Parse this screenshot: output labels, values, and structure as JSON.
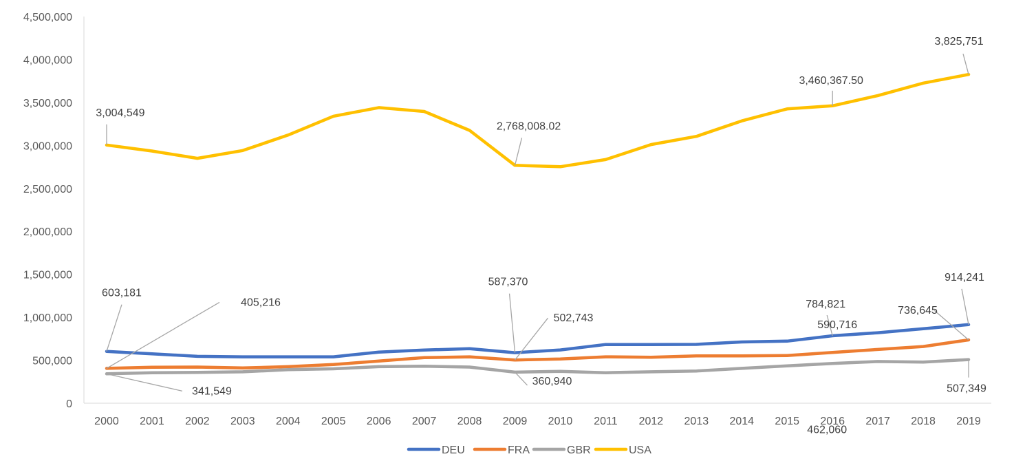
{
  "chart_data": {
    "type": "line",
    "title": "",
    "xlabel": "",
    "ylabel": "",
    "categories": [
      "2000",
      "2001",
      "2002",
      "2003",
      "2004",
      "2005",
      "2006",
      "2007",
      "2008",
      "2009",
      "2010",
      "2011",
      "2012",
      "2013",
      "2014",
      "2015",
      "2016",
      "2017",
      "2018",
      "2019"
    ],
    "ylim": [
      0,
      4500000
    ],
    "y_ticks": [
      0,
      500000,
      1000000,
      1500000,
      2000000,
      2500000,
      3000000,
      3500000,
      4000000,
      4500000
    ],
    "y_tick_labels": [
      "0",
      "500,000",
      "1,000,000",
      "1,500,000",
      "2,000,000",
      "2,500,000",
      "3,000,000",
      "3,500,000",
      "4,000,000",
      "4,500,000"
    ],
    "grid": false,
    "legend_position": "bottom",
    "series": [
      {
        "name": "DEU",
        "color": "#4472C4",
        "values": [
          603181,
          575000,
          545000,
          540000,
          540000,
          540000,
          595000,
          618000,
          635000,
          587370,
          620000,
          683000,
          683000,
          685000,
          713000,
          722000,
          784821,
          820000,
          866000,
          914241
        ]
      },
      {
        "name": "FRA",
        "color": "#ED7D31",
        "values": [
          405216,
          418000,
          420000,
          410000,
          425000,
          450000,
          490000,
          530000,
          540000,
          502743,
          515000,
          540000,
          535000,
          550000,
          550000,
          555000,
          590716,
          625000,
          660000,
          736645
        ]
      },
      {
        "name": "GBR",
        "color": "#A5A5A5",
        "values": [
          341549,
          355000,
          358000,
          365000,
          390000,
          400000,
          425000,
          430000,
          420000,
          360940,
          370000,
          355000,
          365000,
          375000,
          405000,
          435000,
          462060,
          485000,
          478000,
          507349
        ]
      },
      {
        "name": "USA",
        "color": "#FFC000",
        "values": [
          3004549,
          2935000,
          2850000,
          2940000,
          3120000,
          3340000,
          3440000,
          3395000,
          3175000,
          2768008.02,
          2752000,
          2835000,
          3010000,
          3105000,
          3285000,
          3425000,
          3460367.5,
          3580000,
          3725000,
          3825751
        ]
      }
    ],
    "data_labels": [
      {
        "series": "USA",
        "category": "2000",
        "text": "3,004,549"
      },
      {
        "series": "USA",
        "category": "2009",
        "text": "2,768,008.02"
      },
      {
        "series": "USA",
        "category": "2016",
        "text": "3,460,367.50"
      },
      {
        "series": "USA",
        "category": "2019",
        "text": "3,825,751"
      },
      {
        "series": "DEU",
        "category": "2000",
        "text": "603,181"
      },
      {
        "series": "DEU",
        "category": "2009",
        "text": "587,370"
      },
      {
        "series": "DEU",
        "category": "2016",
        "text": "784,821"
      },
      {
        "series": "DEU",
        "category": "2019",
        "text": "914,241"
      },
      {
        "series": "FRA",
        "category": "2000",
        "text": "405,216"
      },
      {
        "series": "FRA",
        "category": "2009",
        "text": "502,743"
      },
      {
        "series": "FRA",
        "category": "2016",
        "text": "590,716"
      },
      {
        "series": "FRA",
        "category": "2019",
        "text": "736,645"
      },
      {
        "series": "GBR",
        "category": "2000",
        "text": "341,549"
      },
      {
        "series": "GBR",
        "category": "2009",
        "text": "360,940"
      },
      {
        "series": "GBR",
        "category": "2016",
        "text": "462,060"
      },
      {
        "series": "GBR",
        "category": "2019",
        "text": "507,349"
      }
    ]
  }
}
